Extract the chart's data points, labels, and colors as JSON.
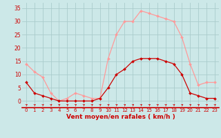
{
  "x": [
    0,
    1,
    2,
    3,
    4,
    5,
    6,
    7,
    8,
    9,
    10,
    11,
    12,
    13,
    14,
    15,
    16,
    17,
    18,
    19,
    20,
    21,
    22,
    23
  ],
  "wind_mean": [
    7,
    3,
    2,
    1,
    0,
    0,
    0,
    0,
    0,
    1,
    5,
    10,
    12,
    15,
    16,
    16,
    16,
    15,
    14,
    10,
    3,
    2,
    1,
    1
  ],
  "wind_gust": [
    14,
    11,
    9,
    3,
    0,
    1,
    3,
    2,
    1,
    1,
    16,
    25,
    30,
    30,
    34,
    33,
    32,
    31,
    30,
    24,
    14,
    6,
    7,
    7
  ],
  "bg_color": "#cce8e8",
  "grid_color": "#aacccc",
  "line_mean_color": "#cc0000",
  "line_gust_color": "#ff9999",
  "xlabel": "Vent moyen/en rafales ( km/h )",
  "xlabel_color": "#cc0000",
  "yticks": [
    0,
    5,
    10,
    15,
    20,
    25,
    30,
    35
  ],
  "ylim": [
    -2.5,
    37
  ],
  "xlim": [
    -0.5,
    23.5
  ]
}
